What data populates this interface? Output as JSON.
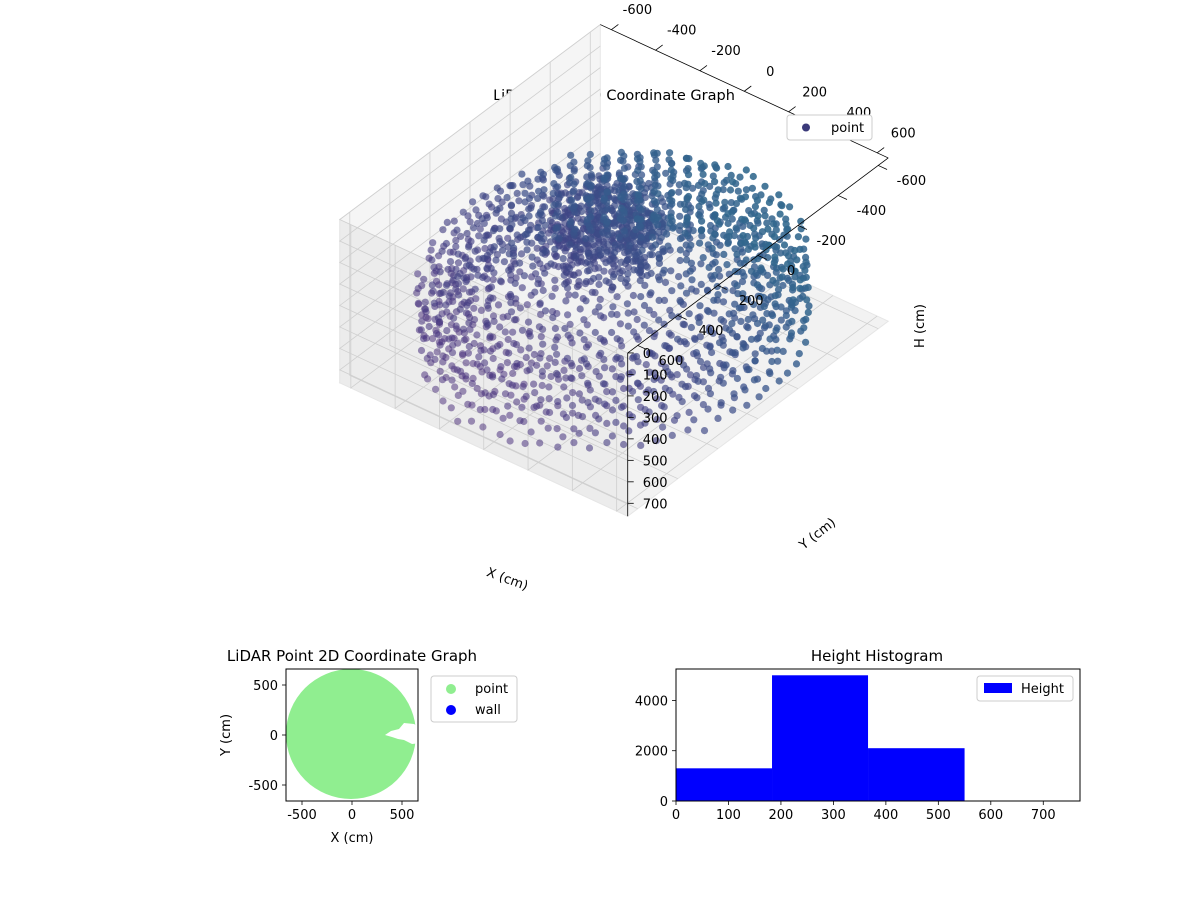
{
  "chart_data": [
    {
      "type": "scatter",
      "projection": "3d",
      "title": "LiDAR Point 3D Coordinate Graph",
      "xlabel": "X (cm)",
      "ylabel": "Y (cm)",
      "zlabel": "H (cm)",
      "xticks": [
        -600,
        -400,
        -200,
        0,
        200,
        400,
        600
      ],
      "yticks": [
        -600,
        -400,
        -200,
        0,
        200,
        400,
        600
      ],
      "zticks": [
        0,
        100,
        200,
        300,
        400,
        500,
        600,
        700
      ],
      "xlim": [
        -650,
        650
      ],
      "ylim": [
        -650,
        650
      ],
      "zlim": [
        0,
        760
      ],
      "z_inverted": true,
      "grid": true,
      "legend": {
        "position": "top-right",
        "entries": [
          "point"
        ]
      },
      "series": [
        {
          "name": "point",
          "color": "#3b3a7a",
          "colormap": "viridis",
          "shape": "rotating scan rings, radius ~650 cm, heights 0-760 cm, dense core near the origin",
          "rings_r": [
            650,
            600,
            550,
            500,
            430,
            350,
            260,
            170,
            90
          ],
          "core": {
            "x": 0,
            "y": 50,
            "radius": 200,
            "h_range": [
              0,
              300
            ]
          }
        }
      ]
    },
    {
      "type": "scatter",
      "title": "LiDAR Point 2D Coordinate Graph",
      "xlabel": "X (cm)",
      "ylabel": "Y (cm)",
      "xticks": [
        -500,
        0,
        500
      ],
      "yticks": [
        -500,
        0,
        500
      ],
      "xlim": [
        -660,
        660
      ],
      "ylim": [
        -660,
        660
      ],
      "legend": {
        "position": "outside-right",
        "entries": [
          "point",
          "wall"
        ]
      },
      "series": [
        {
          "name": "point",
          "color": "#90ee90",
          "shape": "filled disk of radius ~650 cm centered near (0, 0) with a small gap near (450, 0)"
        },
        {
          "name": "wall",
          "color": "#0000ff",
          "points": []
        }
      ]
    },
    {
      "type": "bar",
      "subtype": "histogram",
      "title": "Height Histogram",
      "xticks": [
        0,
        100,
        200,
        300,
        400,
        500,
        600,
        700
      ],
      "yticks": [
        0,
        2000,
        4000
      ],
      "xlim": [
        0,
        770
      ],
      "ylim": [
        0,
        5250
      ],
      "legend": {
        "position": "top-right",
        "entries": [
          "Height"
        ]
      },
      "series": [
        {
          "name": "Height",
          "color": "#0000ff",
          "bin_edges": [
            0,
            183,
            366,
            550,
            733
          ],
          "values": [
            1300,
            5000,
            2100,
            0
          ]
        }
      ]
    }
  ]
}
